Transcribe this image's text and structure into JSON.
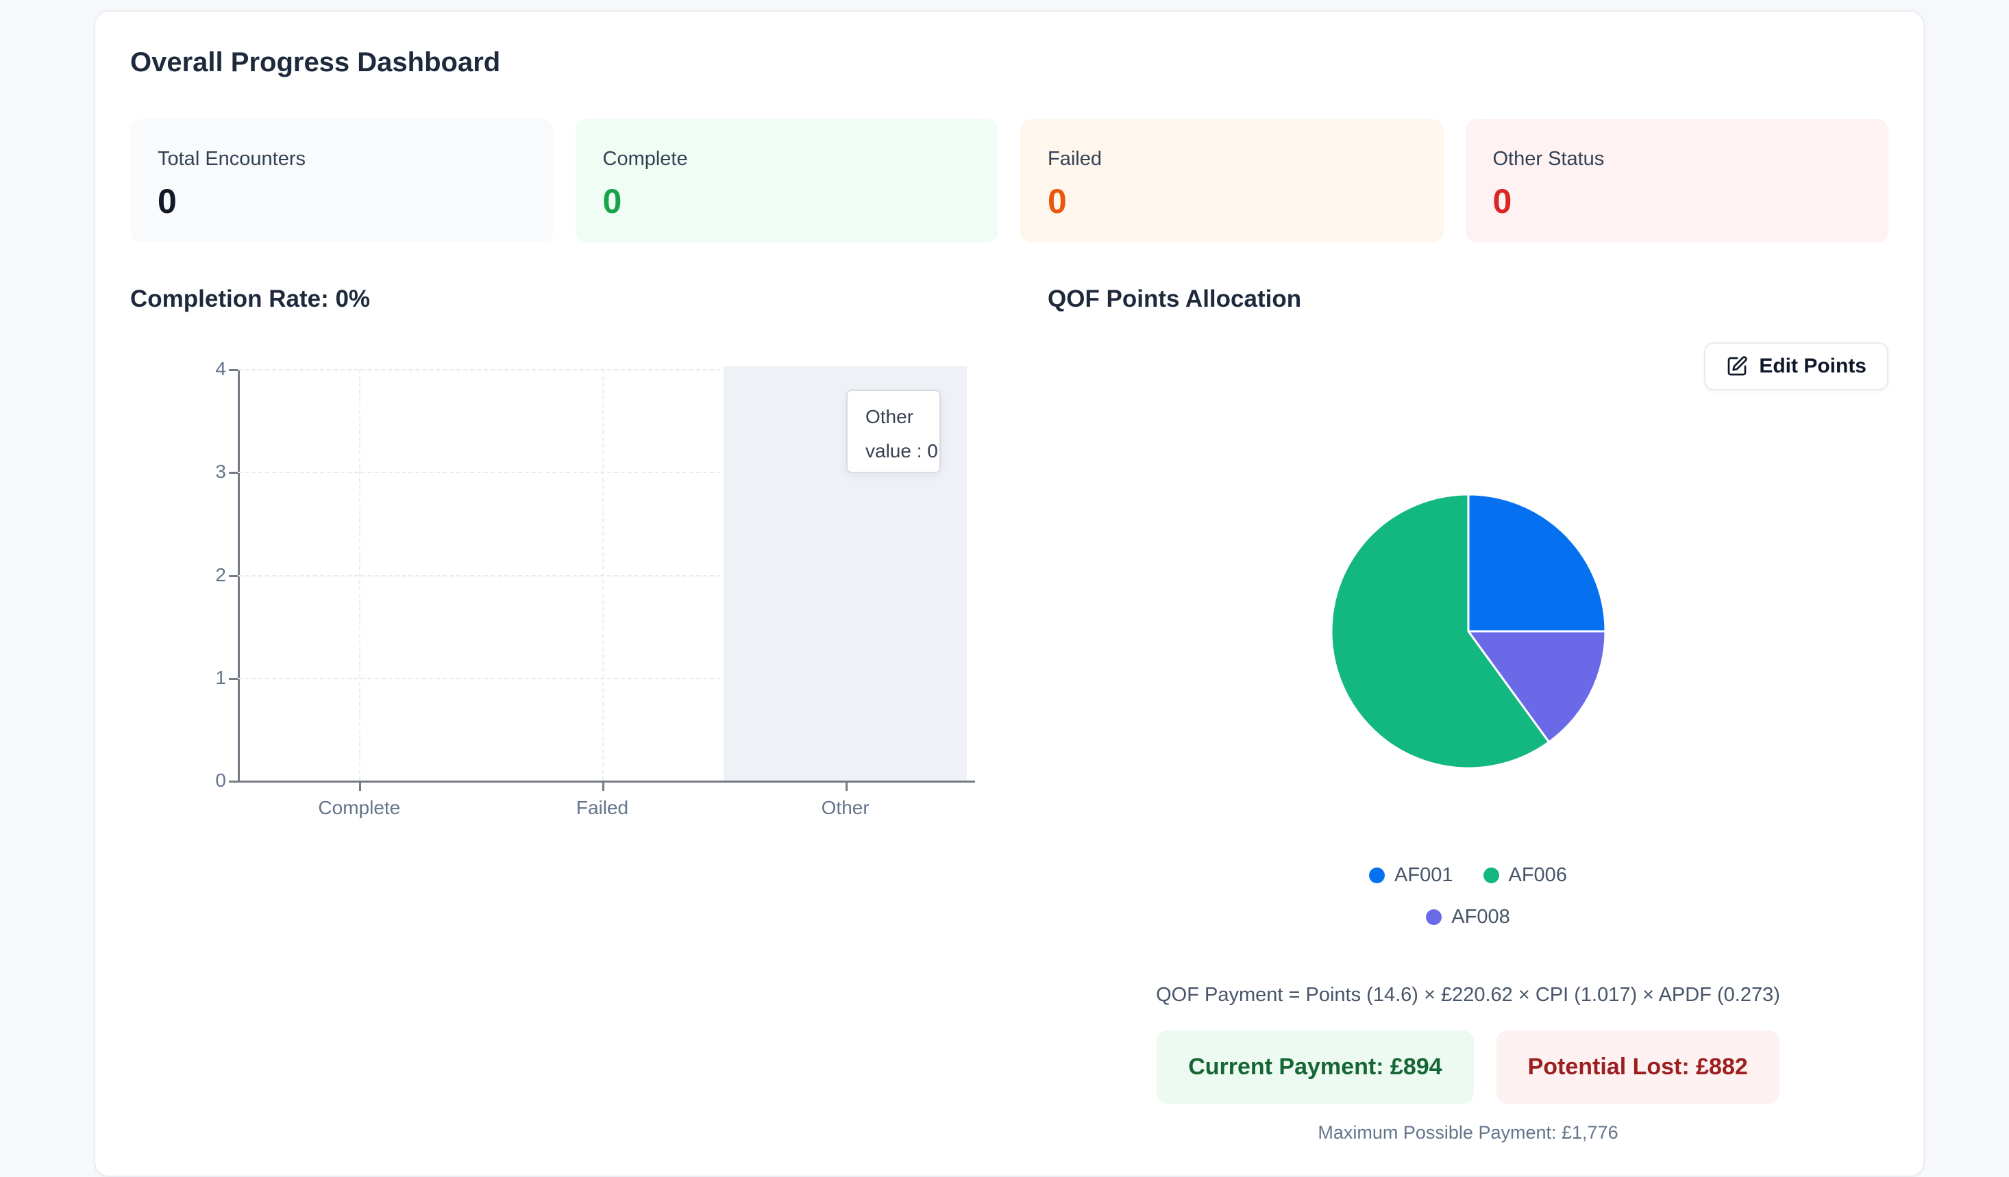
{
  "page": {
    "title": "Overall Progress Dashboard"
  },
  "stats": [
    {
      "label": "Total Encounters",
      "value": "0",
      "bg": "#f8fafc",
      "color": "#111827"
    },
    {
      "label": "Complete",
      "value": "0",
      "bg": "#f0fdf4",
      "color": "#16a34a"
    },
    {
      "label": "Failed",
      "value": "0",
      "bg": "#fff7ed",
      "color": "#ea580c"
    },
    {
      "label": "Other Status",
      "value": "0",
      "bg": "#fef2f2",
      "color": "#dc2626"
    }
  ],
  "completion_section": {
    "heading": "Completion Rate: 0%"
  },
  "qof_section": {
    "heading": "QOF Points Allocation",
    "edit_button_label": "Edit Points",
    "edit_icon": "pencil-square-icon",
    "formula": "QOF Payment = Points (14.6) × £220.62 × CPI (1.017) × APDF (0.273)",
    "current_payment": "Current Payment: £894",
    "potential_lost": "Potential Lost: £882",
    "max_payment": "Maximum Possible Payment: £1,776",
    "badge_colors": {
      "current_bg": "#ecfaf1",
      "current_text": "#166534",
      "lost_bg": "#fdf1f1",
      "lost_text": "#9b1f1f"
    }
  },
  "chart_data": [
    {
      "type": "bar",
      "title": "Completion Rate: 0%",
      "categories": [
        "Complete",
        "Failed",
        "Other"
      ],
      "values": [
        0,
        0,
        0
      ],
      "xlabel": "",
      "ylabel": "",
      "ylim": [
        0,
        4
      ],
      "yticks": [
        0,
        1,
        2,
        3,
        4
      ],
      "grid": true,
      "highlighted_category": "Other",
      "highlight_band_color": "#eef1f6",
      "tooltip": {
        "header": "Other",
        "body": "value : 0"
      }
    },
    {
      "type": "pie",
      "title": "QOF Points Allocation",
      "slices": [
        {
          "label": "AF001",
          "percent": 25,
          "color": "#0571f0"
        },
        {
          "label": "AF008",
          "percent": 15,
          "color": "#6a6ae9"
        },
        {
          "label": "AF006",
          "percent": 60,
          "color": "#12b880"
        }
      ],
      "legend": [
        "AF001",
        "AF006",
        "AF008"
      ],
      "legend_colors": {
        "AF001": "#0571f0",
        "AF006": "#12b880",
        "AF008": "#6a6ae9"
      },
      "legend_position": "bottom"
    }
  ]
}
